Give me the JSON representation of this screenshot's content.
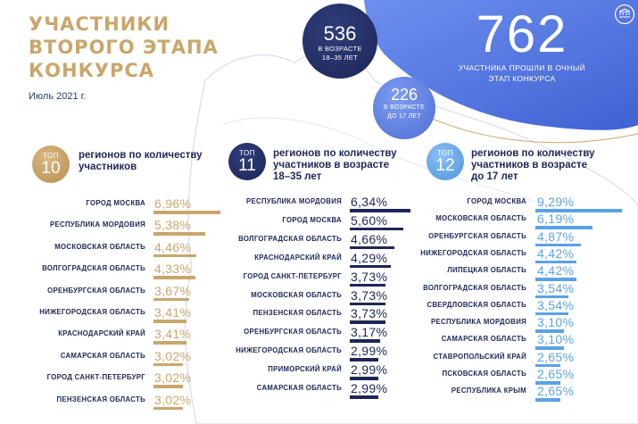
{
  "title_lines": [
    "УЧАСТНИКИ",
    "ВТОРОГО ЭТАПА",
    "КОНКУРСА"
  ],
  "date": "Июль 2021 г.",
  "colors": {
    "gold": "#c9a66b",
    "navy": "#1d2657",
    "blue": "#5aa2e6",
    "map": "#d7dde8"
  },
  "logo_icon": "institution-logo-icon",
  "stats": {
    "age_18_35": {
      "value": "536",
      "label_1": "В ВОЗРАСТЕ",
      "label_2": "18–35 ЛЕТ"
    },
    "under_17": {
      "value": "226",
      "label_1": "В ВОЗРАСТЕ",
      "label_2": "ДО 17 ЛЕТ"
    },
    "total": {
      "value": "762",
      "label_1": "УЧАСТНИКА ПРОШЛИ В ОЧНЫЙ",
      "label_2": "ЭТАП КОНКУРСА"
    }
  },
  "chart_data": [
    {
      "type": "bar",
      "badge": {
        "top": "ТОП",
        "number": "10"
      },
      "title_lines": [
        "регионов по количеству",
        "участников"
      ],
      "categories": [
        "ГОРОД МОСКВА",
        "РЕСПУБЛИКА МОРДОВИЯ",
        "МОСКОВСКАЯ ОБЛАСТЬ",
        "ВОЛГОГРАДСКАЯ ОБЛАСТЬ",
        "ОРЕНБУРГСКАЯ ОБЛАСТЬ",
        "НИЖЕГОРОДСКАЯ ОБЛАСТЬ",
        "КРАСНОДАРСКИЙ КРАЙ",
        "САМАРСКАЯ ОБЛАСТЬ",
        "ГОРОД САНКТ-ПЕТЕРБУРГ",
        "ПЕНЗЕНСКАЯ ОБЛАСТЬ"
      ],
      "values": [
        6.96,
        5.38,
        4.46,
        4.33,
        3.67,
        3.41,
        3.41,
        3.02,
        3.02,
        3.02
      ],
      "labels": [
        "6,96%",
        "5,38%",
        "4,46%",
        "4,33%",
        "3,67%",
        "3,41%",
        "3,41%",
        "3,02%",
        "3,02%",
        "3,02%"
      ],
      "color": "#c9a66b"
    },
    {
      "type": "bar",
      "badge": {
        "top": "ТОП",
        "number": "11"
      },
      "title_lines": [
        "регионов по количеству",
        "участников в возрасте",
        "18–35 лет"
      ],
      "categories": [
        "РЕСПУБЛИКА МОРДОВИЯ",
        "ГОРОД МОСКВА",
        "ВОЛГОГРАДСКАЯ ОБЛАСТЬ",
        "КРАСНОДАРСКИЙ КРАЙ",
        "ГОРОД САНКТ-ПЕТЕРБУРГ",
        "МОСКОВСКАЯ ОБЛАСТЬ",
        "ПЕНЗЕНСКАЯ ОБЛАСТЬ",
        "ОРЕНБУРГСКАЯ ОБЛАСТЬ",
        "НИЖЕГОРОДСКАЯ ОБЛАСТЬ",
        "ПРИМОРСКИЙ КРАЙ",
        "САМАРСКАЯ ОБЛАСТЬ"
      ],
      "values": [
        6.34,
        5.6,
        4.66,
        4.29,
        3.73,
        3.73,
        3.73,
        3.17,
        2.99,
        2.99,
        2.99
      ],
      "labels": [
        "6,34%",
        "5,60%",
        "4,66%",
        "4,29%",
        "3,73%",
        "3,73%",
        "3,73%",
        "3,17%",
        "2,99%",
        "2,99%",
        "2,99%"
      ],
      "color": "#1d2657"
    },
    {
      "type": "bar",
      "badge": {
        "top": "ТОП",
        "number": "12"
      },
      "title_lines": [
        "регионов по количеству",
        "участников в возрасте",
        "до 17 лет"
      ],
      "categories": [
        "ГОРОД МОСКВА",
        "МОСКОВСКАЯ ОБЛАСТЬ",
        "ОРЕНБУРГСКАЯ ОБЛАСТЬ",
        "НИЖЕГОРОДСКАЯ ОБЛАСТЬ",
        "ЛИПЕЦКАЯ ОБЛАСТЬ",
        "ВОЛГОГРАДСКАЯ ОБЛАСТЬ",
        "СВЕРДЛОВСКАЯ ОБЛАСТЬ",
        "РЕСПУБЛИКА МОРДОВИЯ",
        "САМАРСКАЯ ОБЛАСТЬ",
        "СТАВРОПОЛЬСКИЙ КРАЙ",
        "ПСКОВСКАЯ ОБЛАСТЬ",
        "РЕСПУБЛИКА КРЫМ"
      ],
      "values": [
        9.29,
        6.19,
        4.87,
        4.42,
        4.42,
        3.54,
        3.54,
        3.1,
        3.1,
        2.65,
        2.65,
        2.65
      ],
      "labels": [
        "9,29%",
        "6,19%",
        "4,87%",
        "4,42%",
        "4,42%",
        "3,54%",
        "3,54%",
        "3,10%",
        "3,10%",
        "2,65%",
        "2,65%",
        "2,65%"
      ],
      "color": "#5aa2e6"
    }
  ]
}
